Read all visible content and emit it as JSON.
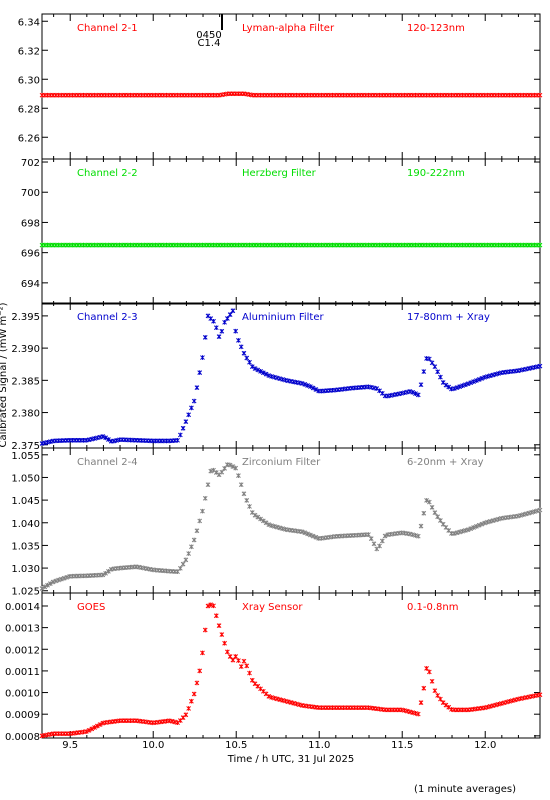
{
  "figure": {
    "xlabel": "Time / h UTC, 31 Jul 2025",
    "ylabel": "Calibrated Signal / (mW m⁻²)",
    "footnote": "(1 minute averages)",
    "xticks": [
      "9.5",
      "10.0",
      "10.5",
      "11.0",
      "11.5",
      "12.0"
    ],
    "event_marker": {
      "time": "0450",
      "class": "C1.4",
      "color": "#000000"
    }
  },
  "chart_data": [
    {
      "type": "scatter",
      "panel_label": "Channel 2-1",
      "filter": "Lyman-alpha Filter",
      "band": "120-123nm",
      "color": "#ff0000",
      "xlim": [
        9.33,
        12.33
      ],
      "ylim": [
        6.245,
        6.345
      ],
      "yticks": [
        6.26,
        6.28,
        6.3,
        6.32,
        6.34
      ],
      "ytick_labels": [
        "6.26",
        "6.28",
        "6.30",
        "6.32",
        "6.34"
      ],
      "series": [
        {
          "points": [
            [
              9.33,
              6.289
            ],
            [
              9.5,
              6.289
            ],
            [
              9.7,
              6.289
            ],
            [
              10.0,
              6.289
            ],
            [
              10.2,
              6.289
            ],
            [
              10.4,
              6.289
            ],
            [
              10.45,
              6.29
            ],
            [
              10.5,
              6.29
            ],
            [
              10.55,
              6.29
            ],
            [
              10.6,
              6.289
            ],
            [
              11.0,
              6.289
            ],
            [
              11.5,
              6.289
            ],
            [
              12.0,
              6.289
            ],
            [
              12.33,
              6.289
            ]
          ]
        }
      ]
    },
    {
      "type": "scatter",
      "panel_label": "Channel 2-2",
      "filter": "Herzberg Filter",
      "band": "190-222nm",
      "color": "#00dd00",
      "xlim": [
        9.33,
        12.33
      ],
      "ylim": [
        692.6,
        702.2
      ],
      "yticks": [
        694,
        696,
        698,
        700,
        702
      ],
      "ytick_labels": [
        "694",
        "696",
        "698",
        "700",
        "702"
      ],
      "series": [
        {
          "points": [
            [
              9.33,
              696.5
            ],
            [
              9.7,
              696.5
            ],
            [
              10.0,
              696.5
            ],
            [
              10.3,
              696.5
            ],
            [
              10.5,
              696.5
            ],
            [
              11.0,
              696.5
            ],
            [
              11.5,
              696.5
            ],
            [
              12.0,
              696.5
            ],
            [
              12.33,
              696.5
            ]
          ]
        }
      ]
    },
    {
      "type": "scatter",
      "panel_label": "Channel 2-3",
      "filter": "Aluminium Filter",
      "band": "17-80nm + Xray",
      "color": "#0000cc",
      "xlim": [
        9.33,
        12.33
      ],
      "ylim": [
        2.3745,
        2.397
      ],
      "yticks": [
        2.375,
        2.38,
        2.385,
        2.39,
        2.395
      ],
      "ytick_labels": [
        "2.375",
        "2.380",
        "2.385",
        "2.390",
        "2.395"
      ],
      "series": [
        {
          "points": [
            [
              9.33,
              2.3752
            ],
            [
              9.4,
              2.3756
            ],
            [
              9.5,
              2.3757
            ],
            [
              9.6,
              2.3757
            ],
            [
              9.7,
              2.3763
            ],
            [
              9.75,
              2.3755
            ],
            [
              9.8,
              2.3758
            ],
            [
              9.9,
              2.3757
            ],
            [
              10.0,
              2.3756
            ],
            [
              10.1,
              2.3756
            ],
            [
              10.15,
              2.3757
            ],
            [
              10.2,
              2.3788
            ],
            [
              10.25,
              2.382
            ],
            [
              10.3,
              2.389
            ],
            [
              10.33,
              2.395
            ],
            [
              10.37,
              2.394
            ],
            [
              10.4,
              2.3915
            ],
            [
              10.43,
              2.394
            ],
            [
              10.48,
              2.3958
            ],
            [
              10.5,
              2.392
            ],
            [
              10.55,
              2.389
            ],
            [
              10.6,
              2.387
            ],
            [
              10.7,
              2.3857
            ],
            [
              10.8,
              2.385
            ],
            [
              10.9,
              2.3845
            ],
            [
              10.95,
              2.384
            ],
            [
              11.0,
              2.3833
            ],
            [
              11.1,
              2.3835
            ],
            [
              11.2,
              2.3838
            ],
            [
              11.3,
              2.384
            ],
            [
              11.35,
              2.3837
            ],
            [
              11.4,
              2.3825
            ],
            [
              11.5,
              2.383
            ],
            [
              11.55,
              2.3833
            ],
            [
              11.6,
              2.3827
            ],
            [
              11.65,
              2.3888
            ],
            [
              11.7,
              2.387
            ],
            [
              11.75,
              2.3845
            ],
            [
              11.8,
              2.3836
            ],
            [
              11.9,
              2.3845
            ],
            [
              12.0,
              2.3855
            ],
            [
              12.1,
              2.3862
            ],
            [
              12.2,
              2.3865
            ],
            [
              12.33,
              2.3872
            ]
          ]
        }
      ]
    },
    {
      "type": "scatter",
      "panel_label": "Channel 2-4",
      "filter": "Zirconium Filter",
      "band": "6-20nm + Xray",
      "color": "#808080",
      "xlim": [
        9.33,
        12.33
      ],
      "ylim": [
        1.0245,
        1.0565
      ],
      "yticks": [
        1.025,
        1.03,
        1.035,
        1.04,
        1.045,
        1.05,
        1.055
      ],
      "ytick_labels": [
        "1.025",
        "1.030",
        "1.035",
        "1.040",
        "1.045",
        "1.050",
        "1.055"
      ],
      "series": [
        {
          "points": [
            [
              9.33,
              1.0255
            ],
            [
              9.4,
              1.027
            ],
            [
              9.5,
              1.0282
            ],
            [
              9.6,
              1.0283
            ],
            [
              9.7,
              1.0285
            ],
            [
              9.75,
              1.0298
            ],
            [
              9.8,
              1.03
            ],
            [
              9.9,
              1.0303
            ],
            [
              10.0,
              1.0296
            ],
            [
              10.1,
              1.0293
            ],
            [
              10.15,
              1.0292
            ],
            [
              10.2,
              1.032
            ],
            [
              10.25,
              1.0365
            ],
            [
              10.3,
              1.043
            ],
            [
              10.35,
              1.052
            ],
            [
              10.4,
              1.0505
            ],
            [
              10.45,
              1.053
            ],
            [
              10.5,
              1.052
            ],
            [
              10.55,
              1.046
            ],
            [
              10.6,
              1.042
            ],
            [
              10.7,
              1.0395
            ],
            [
              10.8,
              1.0385
            ],
            [
              10.9,
              1.038
            ],
            [
              11.0,
              1.0365
            ],
            [
              11.1,
              1.037
            ],
            [
              11.2,
              1.0372
            ],
            [
              11.3,
              1.0374
            ],
            [
              11.35,
              1.034
            ],
            [
              11.4,
              1.0373
            ],
            [
              11.5,
              1.0378
            ],
            [
              11.55,
              1.0375
            ],
            [
              11.6,
              1.037
            ],
            [
              11.65,
              1.0455
            ],
            [
              11.7,
              1.042
            ],
            [
              11.75,
              1.0395
            ],
            [
              11.8,
              1.0375
            ],
            [
              11.9,
              1.0385
            ],
            [
              12.0,
              1.04
            ],
            [
              12.1,
              1.041
            ],
            [
              12.2,
              1.0415
            ],
            [
              12.33,
              1.0428
            ]
          ]
        }
      ]
    },
    {
      "type": "scatter",
      "panel_label": "GOES",
      "filter": "Xray Sensor",
      "band": "0.1-0.8nm",
      "color": "#ff0000",
      "xlim": [
        9.33,
        12.33
      ],
      "ylim": [
        0.00079,
        0.00146
      ],
      "yticks": [
        0.0008,
        0.0009,
        0.001,
        0.0011,
        0.0012,
        0.0013,
        0.0014
      ],
      "ytick_labels": [
        "0.0008",
        "0.0009",
        "0.0010",
        "0.0011",
        "0.0012",
        "0.0013",
        "0.0014"
      ],
      "series": [
        {
          "points": [
            [
              9.33,
              0.0008
            ],
            [
              9.4,
              0.00081
            ],
            [
              9.5,
              0.00081
            ],
            [
              9.6,
              0.00082
            ],
            [
              9.65,
              0.00084
            ],
            [
              9.7,
              0.00086
            ],
            [
              9.8,
              0.00087
            ],
            [
              9.9,
              0.00087
            ],
            [
              10.0,
              0.00086
            ],
            [
              10.1,
              0.00087
            ],
            [
              10.15,
              0.00086
            ],
            [
              10.2,
              0.0009
            ],
            [
              10.25,
              0.001
            ],
            [
              10.28,
              0.0011
            ],
            [
              10.3,
              0.0012
            ],
            [
              10.33,
              0.0014
            ],
            [
              10.36,
              0.00141
            ],
            [
              10.4,
              0.0013
            ],
            [
              10.45,
              0.00118
            ],
            [
              10.48,
              0.00115
            ],
            [
              10.5,
              0.00117
            ],
            [
              10.53,
              0.00112
            ],
            [
              10.55,
              0.00115
            ],
            [
              10.6,
              0.00105
            ],
            [
              10.7,
              0.00098
            ],
            [
              10.8,
              0.00096
            ],
            [
              10.9,
              0.00094
            ],
            [
              11.0,
              0.00093
            ],
            [
              11.1,
              0.00093
            ],
            [
              11.2,
              0.00093
            ],
            [
              11.3,
              0.00093
            ],
            [
              11.4,
              0.00092
            ],
            [
              11.5,
              0.00092
            ],
            [
              11.6,
              0.0009
            ],
            [
              11.63,
              0.00102
            ],
            [
              11.65,
              0.00113
            ],
            [
              11.7,
              0.001
            ],
            [
              11.75,
              0.00095
            ],
            [
              11.8,
              0.00092
            ],
            [
              11.9,
              0.00092
            ],
            [
              12.0,
              0.00093
            ],
            [
              12.1,
              0.00095
            ],
            [
              12.2,
              0.00097
            ],
            [
              12.33,
              0.00099
            ]
          ]
        }
      ]
    }
  ]
}
